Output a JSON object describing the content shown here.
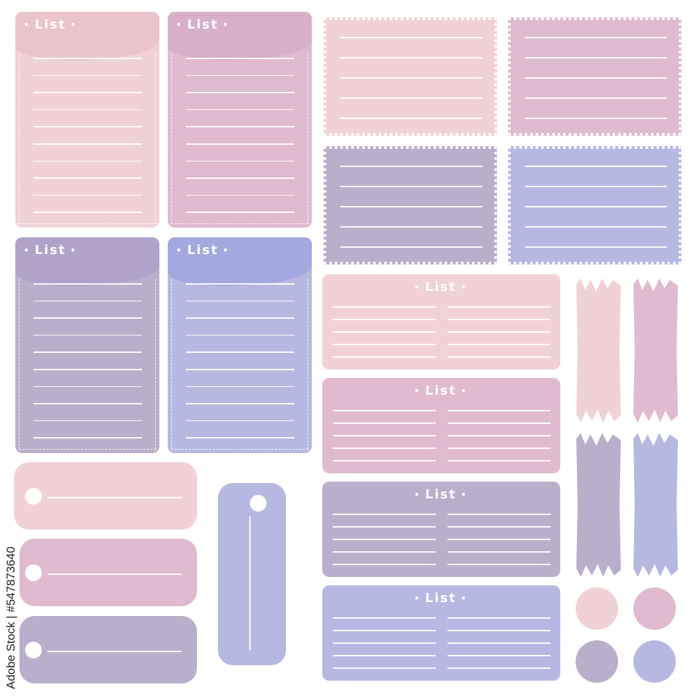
{
  "title_text": "List",
  "colors": {
    "pink": "#f0d2d6",
    "pink_dark": "#ebc3cb",
    "mauve": "#e0bace",
    "mauve_dark": "#d8aec8",
    "lavender": "#baafca",
    "lavender_dark": "#b0a2c8",
    "periwinkle": "#b7b8e2",
    "periwinkle_dark": "#a2a9de"
  },
  "list_cards": [
    {
      "color": "pink"
    },
    {
      "color": "mauve"
    },
    {
      "color": "lavender"
    },
    {
      "color": "periwinkle"
    }
  ],
  "stamps": [
    {
      "color": "pink"
    },
    {
      "color": "mauve"
    },
    {
      "color": "lavender"
    },
    {
      "color": "periwinkle"
    }
  ],
  "wide_cards": [
    {
      "color": "pink"
    },
    {
      "color": "mauve"
    },
    {
      "color": "lavender"
    },
    {
      "color": "periwinkle"
    }
  ],
  "tags": [
    {
      "color": "pink"
    },
    {
      "color": "mauve"
    },
    {
      "color": "lavender"
    },
    {
      "color": "periwinkle"
    }
  ],
  "tapes": [
    {
      "color": "pink"
    },
    {
      "color": "mauve"
    },
    {
      "color": "lavender"
    },
    {
      "color": "periwinkle"
    }
  ],
  "circles": [
    {
      "color": "pink"
    },
    {
      "color": "mauve"
    },
    {
      "color": "lavender"
    },
    {
      "color": "periwinkle"
    }
  ],
  "watermark": "Adobe Stock | #547873640"
}
